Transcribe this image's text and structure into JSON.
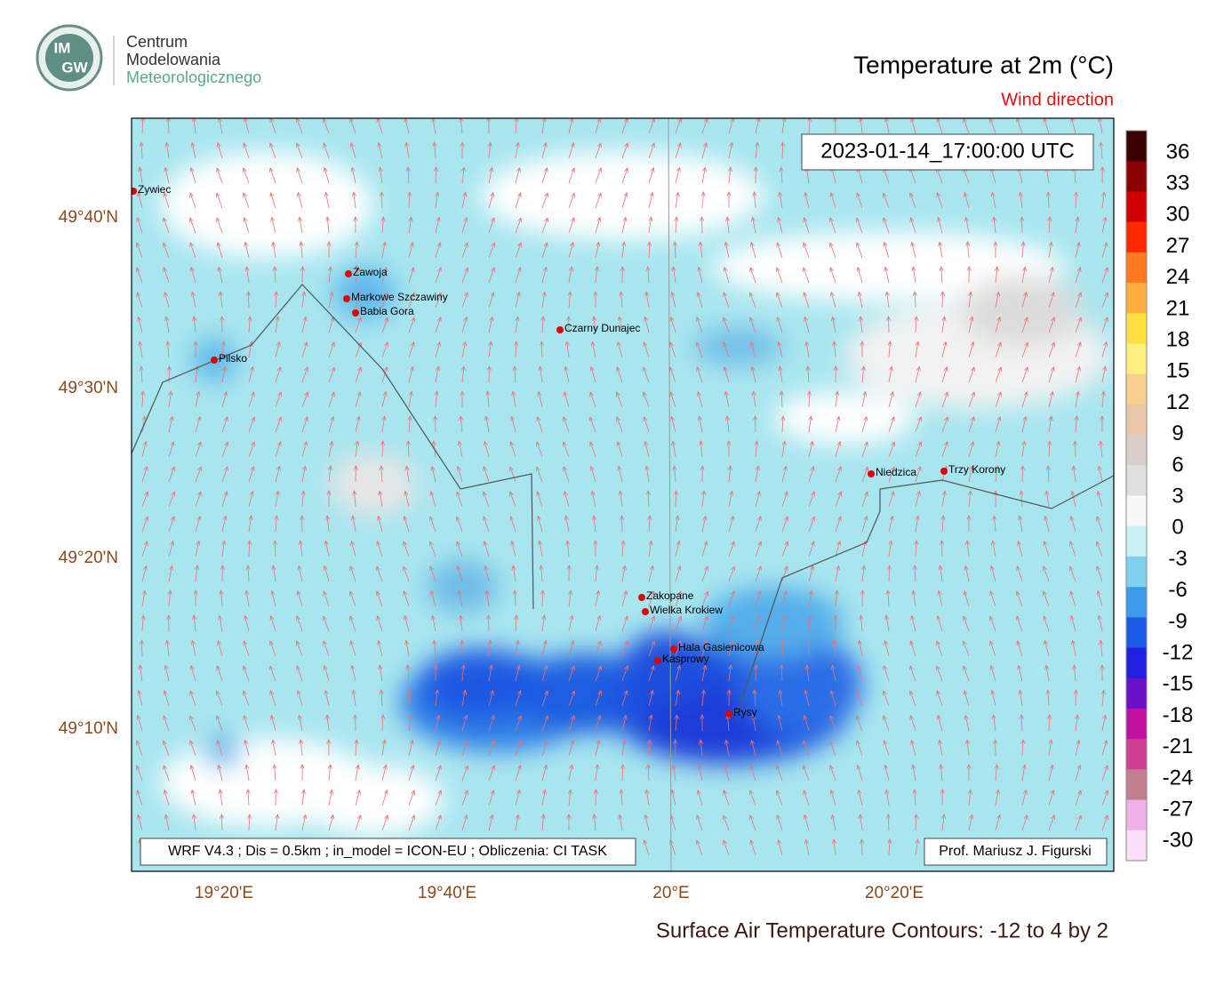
{
  "logo": {
    "badge_top": "IM",
    "badge_bottom": "GW",
    "line1": "Centrum",
    "line2": "Modelowania",
    "line3": "Meteorologicznego"
  },
  "title": "Temperature at 2m (°C)",
  "subtitle": "Wind direction",
  "timestamp": "2023-01-14_17:00:00 UTC",
  "footer_left": "WRF V4.3 ; Dis = 0.5km ; in_model = ICON-EU ; Obliczenia: CI TASK",
  "footer_right": "Prof. Mariusz J. Figurski",
  "caption": "Surface Air Temperature Contours: -12 to 4 by 2",
  "latitude_labels": [
    "49°40'N",
    "49°30'N",
    "49°20'N",
    "49°10'N"
  ],
  "longitude_labels": [
    "19°20'E",
    "19°40'E",
    "20°E",
    "20°20'E"
  ],
  "places": [
    "Zywiec",
    "Żawoja",
    "Markowe Szczawiny",
    "Babia Gora",
    "Pilsko",
    "Czarny Dunajec",
    "Niedzica",
    "Trzy Korony",
    "Zakopane",
    "Wielka Krokiew",
    "Hala Gasienicowa",
    "Kasprowy",
    "Rysy"
  ],
  "colorbar_ticks": [
    "36",
    "33",
    "30",
    "27",
    "24",
    "21",
    "18",
    "15",
    "12",
    "9",
    "6",
    "3",
    "0",
    "-3",
    "-6",
    "-9",
    "-12",
    "-15",
    "-18",
    "-21",
    "-24",
    "-27",
    "-30"
  ]
}
